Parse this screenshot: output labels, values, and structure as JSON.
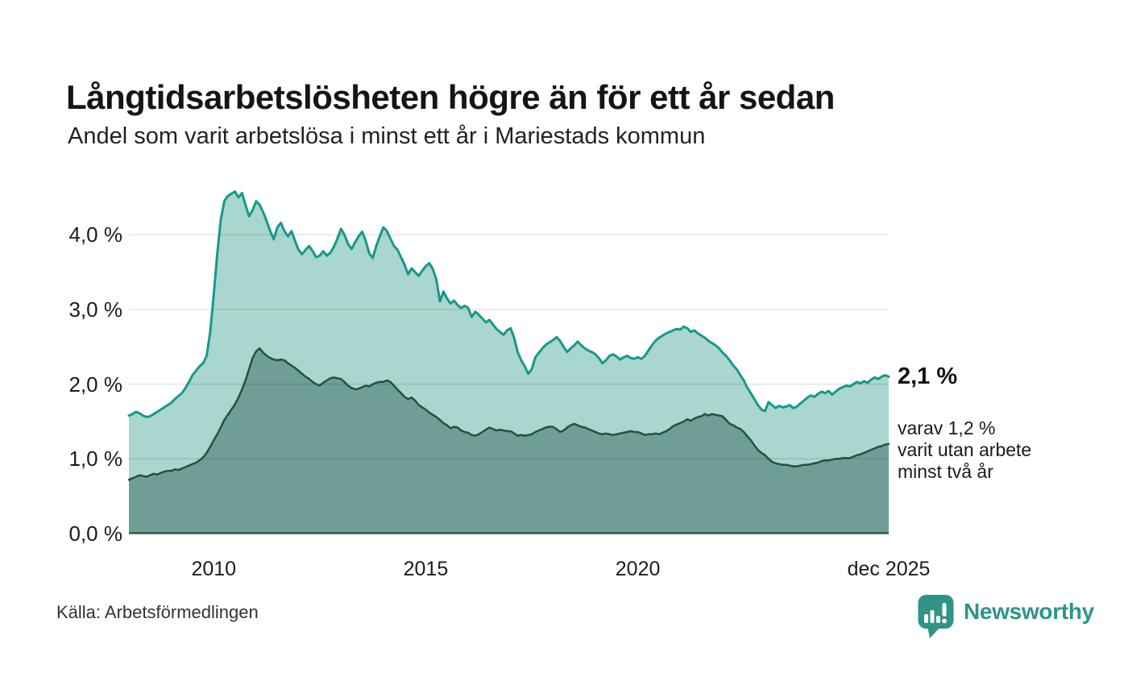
{
  "title": "Långtidsarbetslösheten högre än för ett år sedan",
  "subtitle": "Andel som varit arbetslösa i minst ett år i Mariestads kommun",
  "source": "Källa: Arbetsförmedlingen",
  "brand": {
    "name": "Newsworthy",
    "color": "#2f9486",
    "icon": "bar-chart-bubble-icon"
  },
  "annotations": {
    "latest_total": "2,1 %",
    "latest_two_years": "varav 1,2 %\nvarit utan arbete\nminst två år"
  },
  "chart_data": {
    "type": "area",
    "x_interval": "monthly",
    "x_start": "2008-01",
    "x_end": "2025-12",
    "ylim": [
      0,
      4.72
    ],
    "grid": true,
    "grid_color": "rgba(0,0,0,0.10)",
    "axis_color": "#35544e",
    "legend_position": "none",
    "yticks": [
      {
        "label": "0,0 %",
        "value": 0
      },
      {
        "label": "1,0 %",
        "value": 1
      },
      {
        "label": "2,0 %",
        "value": 2
      },
      {
        "label": "3,0 %",
        "value": 3
      },
      {
        "label": "4,0 %",
        "value": 4
      }
    ],
    "xticks": [
      {
        "label": "2010",
        "month_index": 24
      },
      {
        "label": "2015",
        "month_index": 84
      },
      {
        "label": "2020",
        "month_index": 144
      },
      {
        "label": "dec 2025",
        "month_index": 215
      }
    ],
    "series": [
      {
        "name": "Arbetslösa minst ett år",
        "line_color": "#17998a",
        "fill_color": "#a9d6ce",
        "line_width": 3,
        "values": [
          1.58,
          1.6,
          1.63,
          1.61,
          1.58,
          1.56,
          1.57,
          1.6,
          1.63,
          1.66,
          1.69,
          1.72,
          1.75,
          1.8,
          1.84,
          1.88,
          1.95,
          2.03,
          2.12,
          2.18,
          2.24,
          2.28,
          2.38,
          2.7,
          3.2,
          3.75,
          4.2,
          4.45,
          4.52,
          4.55,
          4.58,
          4.5,
          4.56,
          4.4,
          4.25,
          4.33,
          4.45,
          4.4,
          4.3,
          4.18,
          4.05,
          3.94,
          4.1,
          4.16,
          4.05,
          3.98,
          4.05,
          3.92,
          3.8,
          3.74,
          3.8,
          3.85,
          3.78,
          3.7,
          3.72,
          3.78,
          3.72,
          3.76,
          3.84,
          3.95,
          4.08,
          4.0,
          3.88,
          3.81,
          3.9,
          3.98,
          4.04,
          3.92,
          3.75,
          3.69,
          3.85,
          3.98,
          4.1,
          4.05,
          3.95,
          3.85,
          3.8,
          3.7,
          3.6,
          3.47,
          3.55,
          3.5,
          3.45,
          3.52,
          3.58,
          3.62,
          3.54,
          3.4,
          3.11,
          3.24,
          3.15,
          3.08,
          3.12,
          3.06,
          3.02,
          3.05,
          3.02,
          2.9,
          2.97,
          2.93,
          2.88,
          2.83,
          2.86,
          2.8,
          2.74,
          2.7,
          2.66,
          2.72,
          2.75,
          2.62,
          2.43,
          2.32,
          2.24,
          2.14,
          2.2,
          2.36,
          2.42,
          2.48,
          2.53,
          2.56,
          2.59,
          2.63,
          2.58,
          2.5,
          2.43,
          2.48,
          2.52,
          2.57,
          2.52,
          2.48,
          2.45,
          2.43,
          2.4,
          2.35,
          2.28,
          2.32,
          2.38,
          2.4,
          2.37,
          2.33,
          2.36,
          2.38,
          2.35,
          2.34,
          2.36,
          2.34,
          2.38,
          2.45,
          2.52,
          2.58,
          2.62,
          2.65,
          2.68,
          2.7,
          2.72,
          2.74,
          2.73,
          2.77,
          2.75,
          2.7,
          2.72,
          2.68,
          2.65,
          2.62,
          2.58,
          2.55,
          2.52,
          2.48,
          2.42,
          2.38,
          2.32,
          2.25,
          2.2,
          2.12,
          2.05,
          1.95,
          1.88,
          1.8,
          1.72,
          1.66,
          1.64,
          1.76,
          1.72,
          1.68,
          1.71,
          1.69,
          1.7,
          1.72,
          1.68,
          1.7,
          1.74,
          1.78,
          1.82,
          1.85,
          1.83,
          1.87,
          1.9,
          1.88,
          1.91,
          1.86,
          1.9,
          1.94,
          1.96,
          1.98,
          1.97,
          2.0,
          2.03,
          2.01,
          2.04,
          2.02,
          2.06,
          2.09,
          2.07,
          2.1,
          2.12,
          2.1
        ]
      },
      {
        "name": "Varit utan arbete minst två år",
        "line_color": "#2d4b47",
        "fill_color": "#6f9e97",
        "line_width": 2.5,
        "values": [
          0.72,
          0.74,
          0.76,
          0.78,
          0.77,
          0.76,
          0.78,
          0.8,
          0.79,
          0.81,
          0.83,
          0.84,
          0.84,
          0.86,
          0.85,
          0.87,
          0.89,
          0.91,
          0.93,
          0.95,
          0.98,
          1.02,
          1.08,
          1.16,
          1.25,
          1.33,
          1.42,
          1.52,
          1.59,
          1.66,
          1.73,
          1.82,
          1.93,
          2.05,
          2.2,
          2.35,
          2.44,
          2.48,
          2.42,
          2.38,
          2.35,
          2.33,
          2.32,
          2.33,
          2.32,
          2.28,
          2.25,
          2.22,
          2.18,
          2.14,
          2.1,
          2.07,
          2.03,
          2.0,
          1.98,
          2.02,
          2.05,
          2.08,
          2.09,
          2.08,
          2.07,
          2.03,
          1.98,
          1.95,
          1.93,
          1.94,
          1.96,
          1.98,
          1.97,
          2.0,
          2.02,
          2.03,
          2.03,
          2.05,
          2.03,
          1.98,
          1.93,
          1.88,
          1.83,
          1.8,
          1.82,
          1.78,
          1.72,
          1.69,
          1.66,
          1.62,
          1.59,
          1.56,
          1.52,
          1.48,
          1.45,
          1.41,
          1.43,
          1.42,
          1.38,
          1.36,
          1.35,
          1.32,
          1.31,
          1.33,
          1.36,
          1.39,
          1.42,
          1.4,
          1.38,
          1.39,
          1.38,
          1.37,
          1.37,
          1.34,
          1.31,
          1.32,
          1.31,
          1.32,
          1.33,
          1.36,
          1.38,
          1.4,
          1.42,
          1.43,
          1.43,
          1.4,
          1.36,
          1.38,
          1.42,
          1.45,
          1.47,
          1.45,
          1.43,
          1.42,
          1.4,
          1.38,
          1.36,
          1.34,
          1.33,
          1.34,
          1.33,
          1.32,
          1.33,
          1.34,
          1.35,
          1.36,
          1.37,
          1.36,
          1.36,
          1.34,
          1.32,
          1.33,
          1.33,
          1.34,
          1.33,
          1.35,
          1.37,
          1.4,
          1.44,
          1.46,
          1.48,
          1.5,
          1.53,
          1.51,
          1.54,
          1.56,
          1.57,
          1.6,
          1.58,
          1.6,
          1.59,
          1.58,
          1.57,
          1.52,
          1.47,
          1.45,
          1.42,
          1.4,
          1.36,
          1.3,
          1.25,
          1.18,
          1.12,
          1.08,
          1.05,
          1.0,
          0.96,
          0.94,
          0.93,
          0.92,
          0.92,
          0.91,
          0.9,
          0.9,
          0.91,
          0.92,
          0.92,
          0.93,
          0.94,
          0.95,
          0.97,
          0.98,
          0.98,
          0.99,
          1.0,
          1.0,
          1.01,
          1.01,
          1.01,
          1.03,
          1.05,
          1.06,
          1.08,
          1.1,
          1.12,
          1.14,
          1.16,
          1.17,
          1.19,
          1.2
        ]
      }
    ]
  }
}
